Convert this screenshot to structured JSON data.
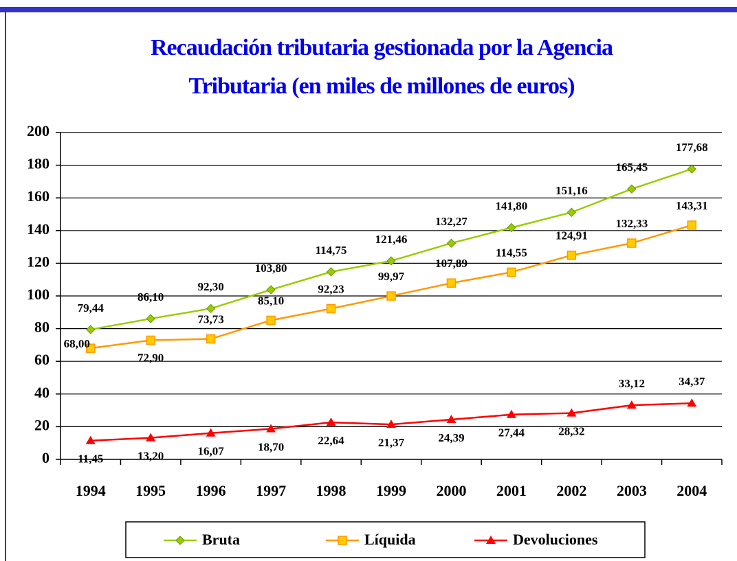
{
  "chart_data": {
    "type": "line",
    "title": [
      "Recaudación tributaria gestionada por la Agencia",
      "Tributaria (en miles de millones de euros)"
    ],
    "categories": [
      "1994",
      "1995",
      "1996",
      "1997",
      "1998",
      "1999",
      "2000",
      "2001",
      "2002",
      "2003",
      "2004"
    ],
    "series": [
      {
        "name": "Bruta",
        "color": "#99cc00",
        "marker": "diamond",
        "values": [
          79.44,
          86.1,
          92.3,
          103.8,
          114.75,
          121.46,
          132.27,
          141.8,
          151.16,
          165.45,
          177.68
        ],
        "value_labels": [
          "79,44",
          "86,10",
          "92,30",
          "103,80",
          "114,75",
          "121,46",
          "132,27",
          "141,80",
          "151,16",
          "165,45",
          "177,68"
        ]
      },
      {
        "name": "Líquida",
        "color": "#ff9900",
        "marker": "square",
        "values": [
          68.0,
          72.9,
          73.73,
          85.1,
          92.23,
          99.97,
          107.89,
          114.55,
          124.91,
          132.33,
          143.31
        ],
        "value_labels": [
          "68,00",
          "72,90",
          "73,73",
          "85,10",
          "92,23",
          "99,97",
          "107,89",
          "114,55",
          "124,91",
          "132,33",
          "143,31"
        ]
      },
      {
        "name": "Devoluciones",
        "color": "#ff0000",
        "marker": "triangle",
        "values": [
          11.45,
          13.2,
          16.07,
          18.7,
          22.64,
          21.37,
          24.39,
          27.44,
          28.32,
          33.12,
          34.37
        ],
        "value_labels": [
          "11,45",
          "13,20",
          "16,07",
          "18,70",
          "22,64",
          "21,37",
          "24,39",
          "27,44",
          "28,32",
          "33,12",
          "34,37"
        ]
      }
    ],
    "ylim": [
      0,
      200
    ],
    "yticks": [
      0,
      20,
      40,
      60,
      80,
      100,
      120,
      140,
      160,
      180,
      200
    ],
    "grid": true,
    "legend": "bottom"
  }
}
